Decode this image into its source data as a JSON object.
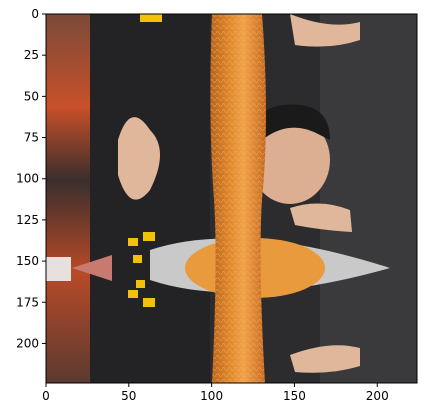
{
  "chart_data": {
    "type": "heatmap",
    "title": "",
    "xlabel": "",
    "ylabel": "",
    "xlim": [
      0,
      224
    ],
    "ylim": [
      224,
      0
    ],
    "grid": false,
    "x_ticks": [
      0,
      50,
      100,
      150,
      200
    ],
    "y_ticks": [
      0,
      25,
      50,
      75,
      100,
      125,
      150,
      175,
      200
    ],
    "x_tick_labels": [
      "0",
      "50",
      "100",
      "150",
      "200"
    ],
    "y_tick_labels": [
      "0",
      "25",
      "50",
      "75",
      "100",
      "125",
      "150",
      "175",
      "200"
    ]
  },
  "colors": {
    "background_dark": "#2c2c2e",
    "noodle_orange": "#d9822b",
    "noodle_light": "#f0a84a",
    "skin": "#e0b79b",
    "plate": "#c9c9c9",
    "hair": "#1a1a1a",
    "accent_yellow": "#f2c20a",
    "left_red": "#c8502a"
  }
}
